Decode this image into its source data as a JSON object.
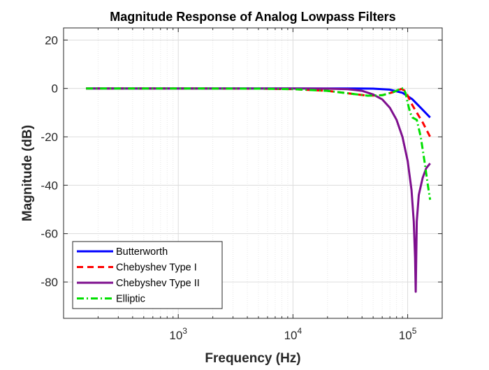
{
  "chart_data": {
    "type": "line",
    "title": "Magnitude Response of Analog Lowpass Filters",
    "xlabel": "Frequency (Hz)",
    "ylabel": "Magnitude (dB)",
    "x_scale": "log",
    "xlim": [
      100,
      200000
    ],
    "ylim": [
      -95,
      25
    ],
    "x_ticks": [
      {
        "value": 1000,
        "base": "10",
        "exp": "3"
      },
      {
        "value": 10000,
        "base": "10",
        "exp": "4"
      },
      {
        "value": 100000,
        "base": "10",
        "exp": "5"
      }
    ],
    "y_ticks": [
      20,
      0,
      -20,
      -40,
      -60,
      -80
    ],
    "grid": true,
    "legend_position": "bottom-left",
    "series": [
      {
        "name": "Butterworth",
        "color": "#0000ff",
        "dash": "solid",
        "x": [
          157,
          1000,
          10000,
          30000,
          50000,
          70000,
          90000,
          110000,
          130000,
          157000
        ],
        "y": [
          0,
          0,
          0,
          0,
          -0.1,
          -0.5,
          -1.8,
          -4.5,
          -8,
          -12
        ]
      },
      {
        "name": "Chebyshev Type I",
        "color": "#ff0000",
        "dash": "dashed",
        "x": [
          157,
          1000,
          5000,
          10000,
          20000,
          30000,
          45000,
          60000,
          75000,
          88000,
          95000,
          100000,
          110000,
          120000,
          135000,
          157000
        ],
        "y": [
          0,
          0,
          -0.1,
          -0.3,
          -1,
          -2,
          -3,
          -2.8,
          -1.5,
          -0.2,
          -1,
          -3,
          -7,
          -10,
          -14,
          -20
        ]
      },
      {
        "name": "Chebyshev Type II",
        "color": "#7e0f8e",
        "dash": "solid",
        "x": [
          157,
          1000,
          10000,
          20000,
          30000,
          40000,
          50000,
          60000,
          70000,
          80000,
          90000,
          100000,
          108000,
          113000,
          116000,
          117500,
          120000,
          125000,
          135000,
          145000,
          157000
        ],
        "y": [
          0,
          0,
          0,
          -0.1,
          -0.3,
          -1,
          -2.5,
          -4.5,
          -8,
          -13,
          -20,
          -30,
          -42,
          -55,
          -70,
          -84,
          -55,
          -44,
          -37,
          -33,
          -31
        ]
      },
      {
        "name": "Elliptic",
        "color": "#00e000",
        "dash": "dashdot",
        "x": [
          157,
          1000,
          5000,
          10000,
          20000,
          30000,
          45000,
          60000,
          75000,
          88000,
          92000,
          96000,
          100000,
          105000,
          110000,
          120000,
          130000,
          140000,
          150000,
          157000
        ],
        "y": [
          0,
          0,
          -0.1,
          -0.3,
          -1,
          -2,
          -3,
          -2.8,
          -1.5,
          0,
          0,
          -2,
          -6,
          -10,
          -12,
          -13,
          -20,
          -30,
          -40,
          -46
        ]
      }
    ]
  }
}
